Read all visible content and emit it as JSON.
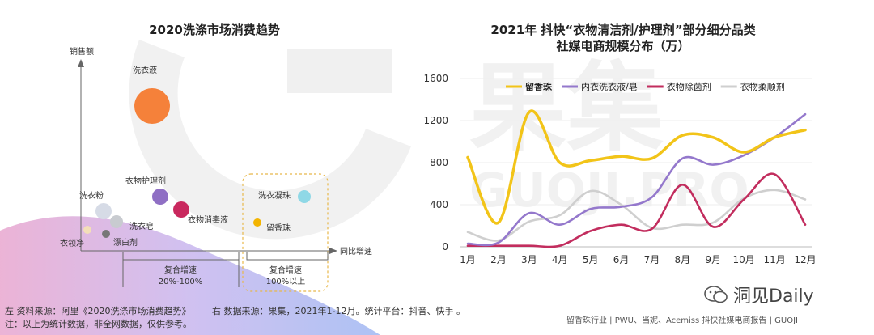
{
  "left_chart": {
    "title": "2020洗涤市场消费趋势",
    "y_axis_label": "销售额",
    "x_axis_label": "同比增速",
    "bubbles": [
      {
        "label": "洗衣液",
        "color": "#f5813a",
        "size": "large"
      },
      {
        "label": "衣物护理剂",
        "color": "#8f6fc4",
        "size": "medium"
      },
      {
        "label": "衣物消毒液",
        "color": "#c9285e",
        "size": "medium"
      },
      {
        "label": "洗衣粉",
        "color": "#d6dbe6",
        "size": "medium"
      },
      {
        "label": "洗衣皂",
        "color": "#c8cbd0",
        "size": "small"
      },
      {
        "label": "衣领净",
        "color": "#f3dfb8",
        "size": "small"
      },
      {
        "label": "漂白剂",
        "color": "#777777",
        "size": "small"
      },
      {
        "label": "洗衣凝珠",
        "color": "#8fd8e6",
        "size": "small"
      },
      {
        "label": "留香珠",
        "color": "#f3b400",
        "size": "small"
      }
    ],
    "segment_low": {
      "line1": "复合增速",
      "line2": "20%-100%"
    },
    "segment_high": {
      "line1": "复合增速",
      "line2": "100%以上"
    }
  },
  "chart_data": {
    "type": "line",
    "title": "2021年 抖快“衣物清洁剂/护理剂”部分细分品类",
    "subtitle": "社媒电商规模分布（万）",
    "categories": [
      "1月",
      "2月",
      "3月",
      "4月",
      "5月",
      "6月",
      "7月",
      "8月",
      "9月",
      "10月",
      "11月",
      "12月"
    ],
    "ylim": [
      0,
      1600
    ],
    "yticks": [
      0,
      400,
      800,
      1200,
      1600
    ],
    "legend_position": "top",
    "series": [
      {
        "name": "留香珠",
        "color": "#f2c418",
        "values": [
          850,
          230,
          1280,
          800,
          820,
          860,
          840,
          1060,
          1040,
          900,
          1040,
          1110
        ]
      },
      {
        "name": "内衣洗衣液/皂",
        "color": "#9478cc",
        "values": [
          30,
          40,
          320,
          210,
          360,
          380,
          470,
          840,
          780,
          870,
          1040,
          1260
        ]
      },
      {
        "name": "衣物除菌剂",
        "color": "#c22d5e",
        "values": [
          10,
          10,
          10,
          10,
          150,
          210,
          170,
          590,
          190,
          450,
          690,
          210
        ]
      },
      {
        "name": "衣物柔顺剂",
        "color": "#cfcfcf",
        "values": [
          140,
          60,
          240,
          300,
          530,
          400,
          180,
          210,
          230,
          460,
          540,
          450
        ]
      }
    ]
  },
  "notes": {
    "left": "左 资料来源：阿里《2020洗涤市场消费趋势》",
    "right": "右 数据来源：果集，2021年1-12月。统计平台：抖音、快手 。",
    "line2": "注：以上为统计数据，非全网数据，仅供参考。"
  },
  "watermark": {
    "brand_cn": "果集",
    "brand_en": "GUOJI.PRO"
  },
  "wechat_brand": "洞见Daily",
  "footer_source": "留香珠行业 | PWU、当妮、Acemiss 抖快社媒电商报告 | GUOJI"
}
